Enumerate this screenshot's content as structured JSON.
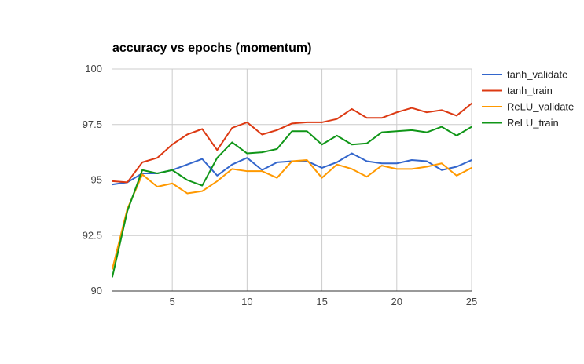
{
  "chart_data": {
    "type": "line",
    "title": "accuracy vs epochs (momentum)",
    "xlabel": "",
    "ylabel": "",
    "xlim": [
      1,
      25
    ],
    "ylim": [
      90,
      100
    ],
    "x_ticks": [
      5,
      10,
      15,
      20,
      25
    ],
    "y_ticks": [
      90,
      92.5,
      95,
      97.5,
      100
    ],
    "x_tick_labels": [
      "5",
      "10",
      "15",
      "20",
      "25"
    ],
    "y_tick_labels": [
      "90",
      "92.5",
      "95",
      "97.5",
      "100"
    ],
    "grid": true,
    "legend_position": "right",
    "x": [
      1,
      2,
      3,
      4,
      5,
      6,
      7,
      8,
      9,
      10,
      11,
      12,
      13,
      14,
      15,
      16,
      17,
      18,
      19,
      20,
      21,
      22,
      23,
      24,
      25
    ],
    "series": [
      {
        "name": "tanh_validate",
        "color": "#3366cc",
        "values": [
          94.8,
          94.9,
          95.3,
          95.3,
          95.45,
          95.7,
          95.95,
          95.2,
          95.7,
          96.0,
          95.45,
          95.8,
          95.85,
          95.85,
          95.55,
          95.8,
          96.2,
          95.85,
          95.75,
          95.75,
          95.9,
          95.85,
          95.45,
          95.6,
          95.9
        ]
      },
      {
        "name": "tanh_train",
        "color": "#dc3912",
        "values": [
          94.95,
          94.9,
          95.8,
          96.0,
          96.6,
          97.05,
          97.3,
          96.35,
          97.35,
          97.6,
          97.05,
          97.25,
          97.55,
          97.6,
          97.6,
          97.75,
          98.2,
          97.8,
          97.8,
          98.05,
          98.25,
          98.05,
          98.15,
          97.9,
          98.45
        ]
      },
      {
        "name": "ReLU_validate",
        "color": "#ff9900",
        "values": [
          91.0,
          93.7,
          95.25,
          94.7,
          94.85,
          94.4,
          94.5,
          94.95,
          95.5,
          95.4,
          95.4,
          95.1,
          95.85,
          95.9,
          95.1,
          95.7,
          95.5,
          95.15,
          95.65,
          95.5,
          95.5,
          95.6,
          95.75,
          95.2,
          95.55
        ]
      },
      {
        "name": "ReLU_train",
        "color": "#109618",
        "values": [
          90.65,
          93.6,
          95.45,
          95.3,
          95.45,
          95.0,
          94.75,
          96.0,
          96.7,
          96.2,
          96.25,
          96.4,
          97.2,
          97.2,
          96.6,
          97.0,
          96.6,
          96.65,
          97.15,
          97.2,
          97.25,
          97.15,
          97.4,
          97.0,
          97.4
        ]
      }
    ]
  }
}
